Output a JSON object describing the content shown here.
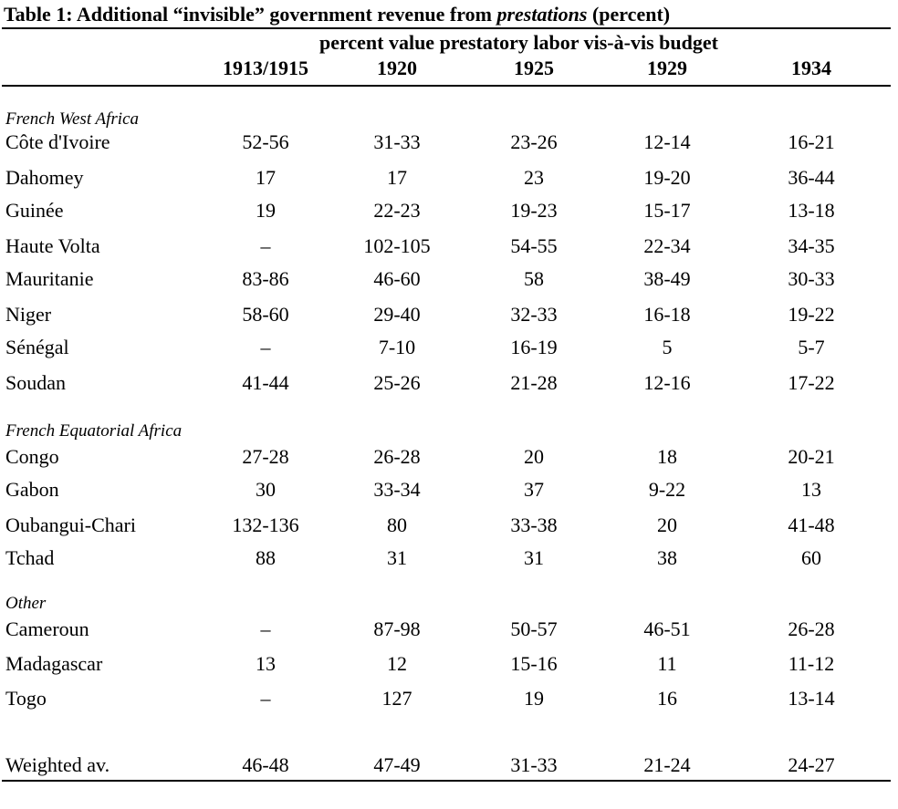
{
  "title": {
    "prefix": "Table 1: Additional “invisible” government revenue from ",
    "italic": "prestations",
    "suffix": " (percent)"
  },
  "spanning_header": "percent value prestatory labor vis-à-vis budget",
  "columns": [
    "1913/1915",
    "1920",
    "1925",
    "1929",
    "1934"
  ],
  "groups": [
    {
      "label": "French West Africa",
      "rows": [
        {
          "name": "Côte d'Ivoire",
          "values": [
            "52-56",
            "31-33",
            "23-26",
            "12-14",
            "16-21"
          ]
        },
        {
          "name": "Dahomey",
          "values": [
            "17",
            "17",
            "23",
            "19-20",
            "36-44"
          ]
        },
        {
          "name": "Guinée",
          "values": [
            "19",
            "22-23",
            "19-23",
            "15-17",
            "13-18"
          ]
        },
        {
          "name": "Haute Volta",
          "values": [
            "–",
            "102-105",
            "54-55",
            "22-34",
            "34-35"
          ]
        },
        {
          "name": "Mauritanie",
          "values": [
            "83-86",
            "46-60",
            "58",
            "38-49",
            "30-33"
          ]
        },
        {
          "name": "Niger",
          "values": [
            "58-60",
            "29-40",
            "32-33",
            "16-18",
            "19-22"
          ]
        },
        {
          "name": "Sénégal",
          "values": [
            "–",
            "7-10",
            "16-19",
            "5",
            "5-7"
          ]
        },
        {
          "name": "Soudan",
          "values": [
            "41-44",
            "25-26",
            "21-28",
            "12-16",
            "17-22"
          ]
        }
      ]
    },
    {
      "label": "French Equatorial Africa",
      "rows": [
        {
          "name": "Congo",
          "values": [
            "27-28",
            "26-28",
            "20",
            "18",
            "20-21"
          ]
        },
        {
          "name": "Gabon",
          "values": [
            "30",
            "33-34",
            "37",
            "9-22",
            "13"
          ]
        },
        {
          "name": "Oubangui-Chari",
          "values": [
            "132-136",
            "80",
            "33-38",
            "20",
            "41-48"
          ]
        },
        {
          "name": "Tchad",
          "values": [
            "88",
            "31",
            "31",
            "38",
            "60"
          ]
        }
      ]
    },
    {
      "label": "Other",
      "rows": [
        {
          "name": "Cameroun",
          "values": [
            "–",
            "87-98",
            "50-57",
            "46-51",
            "26-28"
          ]
        },
        {
          "name": "Madagascar",
          "values": [
            "13",
            "12",
            "15-16",
            "11",
            "11-12"
          ]
        },
        {
          "name": "Togo",
          "values": [
            "–",
            "127",
            "19",
            "16",
            "13-14"
          ]
        }
      ]
    }
  ],
  "summary": {
    "name": "Weighted av.",
    "values": [
      "46-48",
      "47-49",
      "31-33",
      "21-24",
      "24-27"
    ]
  }
}
